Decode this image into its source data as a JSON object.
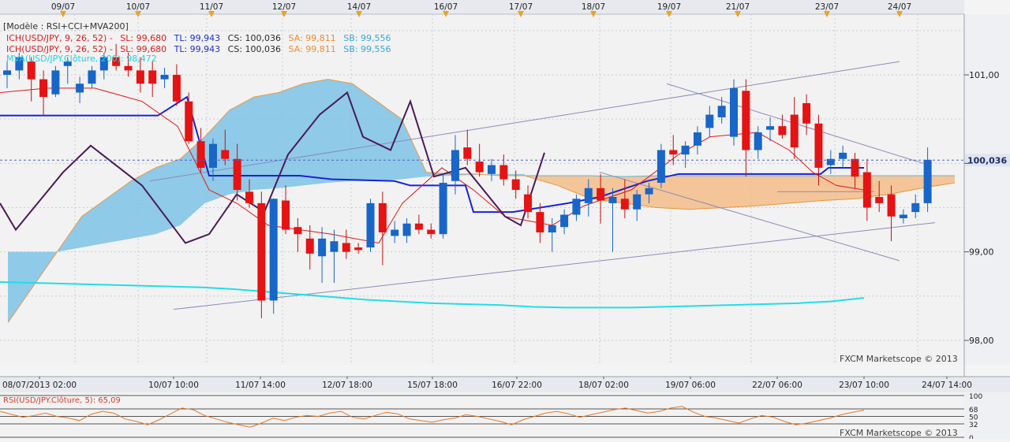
{
  "chart_data": {
    "type": "candlestick",
    "top_dates": [
      "09/07",
      "10/07",
      "11/07",
      "12/07",
      "14/07",
      "16/07",
      "17/07",
      "18/07",
      "19/07",
      "21/07",
      "23/07",
      "24/07"
    ],
    "bottom_dates": [
      "08/07/2013 02:00",
      "10/07 10:00",
      "11/07 14:00",
      "12/07 18:00",
      "15/07 18:00",
      "16/07 22:00",
      "18/07 02:00",
      "19/07 06:00",
      "22/07 06:00",
      "23/07 10:00",
      "24/07 14:00"
    ],
    "legend": {
      "model": "[Modèle : RSI+CCI+MVA200]",
      "ich_row1": {
        "name": "ICH(USD/JPY, 9, 26, 52) -",
        "sl": "SL: 99,680",
        "tl": "TL: 99,943",
        "cs": "CS: 100,036",
        "sa": "SA: 99,811",
        "sb": "SB: 99,556"
      },
      "ich_row2": {
        "name": "ICH(USD/JPY, 9, 26, 52) -",
        "sl": "SL: 99,680",
        "tl": "TL: 99,943",
        "cs": "CS: 100,036",
        "sa": "SA: 99,811",
        "sb": "SB: 99,556"
      },
      "mva": "MVA(USD/JPY.Clôture, 200): 98,472"
    },
    "y_ticks": [
      {
        "value": 98.0,
        "label": "98,00"
      },
      {
        "value": 99.0,
        "label": "99,00"
      },
      {
        "value": 100.0,
        "label": ""
      },
      {
        "value": 101.0,
        "label": "101,00"
      }
    ],
    "current_price": {
      "value": 100.036,
      "label": "100,036"
    },
    "watermark": "FXCM Marketscope © 2013",
    "rsi_panel": {
      "title": "RSI(USD/JPY.Clôture, 5): 65,09",
      "levels": [
        "100",
        "68",
        "50",
        "32",
        "0"
      ],
      "watermark": "FXCM Marketscope © 2013"
    },
    "candles": [
      [
        101.0,
        101.15,
        100.85,
        101.05
      ],
      [
        101.05,
        101.25,
        100.95,
        101.2
      ],
      [
        101.15,
        101.2,
        100.7,
        100.95
      ],
      [
        100.95,
        101.05,
        100.55,
        100.75
      ],
      [
        100.78,
        101.1,
        100.75,
        101.05
      ],
      [
        101.1,
        101.2,
        100.9,
        101.15
      ],
      [
        100.8,
        100.98,
        100.68,
        100.9
      ],
      [
        100.9,
        101.1,
        100.85,
        101.05
      ],
      [
        101.05,
        101.25,
        100.95,
        101.2
      ],
      [
        101.2,
        101.35,
        101.05,
        101.1
      ],
      [
        101.1,
        101.25,
        100.98,
        101.05
      ],
      [
        101.05,
        101.2,
        100.8,
        100.9
      ],
      [
        101.05,
        101.15,
        100.75,
        100.9
      ],
      [
        100.95,
        101.08,
        100.85,
        101.0
      ],
      [
        101.0,
        101.12,
        100.65,
        100.7
      ],
      [
        100.7,
        100.8,
        100.22,
        100.25
      ],
      [
        100.25,
        100.4,
        99.9,
        99.95
      ],
      [
        99.95,
        100.28,
        99.8,
        100.22
      ],
      [
        100.15,
        100.38,
        99.98,
        100.05
      ],
      [
        100.05,
        100.22,
        99.58,
        99.7
      ],
      [
        99.68,
        99.82,
        99.5,
        99.55
      ],
      [
        99.55,
        99.68,
        98.25,
        98.45
      ],
      [
        98.45,
        99.6,
        98.3,
        99.6
      ],
      [
        99.58,
        99.75,
        99.2,
        99.25
      ],
      [
        99.28,
        99.38,
        99.0,
        99.2
      ],
      [
        99.15,
        99.3,
        98.8,
        98.98
      ],
      [
        98.95,
        99.28,
        98.65,
        99.15
      ],
      [
        99.0,
        99.25,
        98.65,
        99.12
      ],
      [
        99.1,
        99.25,
        98.92,
        99.0
      ],
      [
        99.05,
        99.1,
        98.98,
        99.02
      ],
      [
        99.05,
        99.6,
        99.0,
        99.55
      ],
      [
        99.55,
        99.68,
        98.85,
        99.22
      ],
      [
        99.18,
        99.35,
        99.1,
        99.25
      ],
      [
        99.18,
        99.38,
        99.1,
        99.32
      ],
      [
        99.32,
        99.42,
        99.2,
        99.25
      ],
      [
        99.25,
        99.32,
        99.15,
        99.2
      ],
      [
        99.2,
        99.88,
        99.15,
        99.78
      ],
      [
        99.8,
        100.32,
        99.65,
        100.15
      ],
      [
        100.18,
        100.38,
        99.98,
        100.05
      ],
      [
        100.02,
        100.22,
        99.85,
        99.9
      ],
      [
        99.88,
        100.05,
        99.8,
        99.98
      ],
      [
        99.98,
        100.1,
        99.75,
        99.82
      ],
      [
        99.82,
        99.92,
        99.6,
        99.7
      ],
      [
        99.65,
        99.75,
        99.38,
        99.45
      ],
      [
        99.45,
        99.55,
        99.1,
        99.22
      ],
      [
        99.22,
        99.38,
        99.0,
        99.3
      ],
      [
        99.28,
        99.48,
        99.2,
        99.42
      ],
      [
        99.42,
        99.65,
        99.35,
        99.6
      ],
      [
        99.55,
        99.82,
        99.4,
        99.72
      ],
      [
        99.72,
        99.88,
        99.32,
        99.58
      ],
      [
        99.55,
        99.72,
        99.0,
        99.62
      ],
      [
        99.6,
        99.82,
        99.38,
        99.48
      ],
      [
        99.48,
        99.7,
        99.35,
        99.65
      ],
      [
        99.65,
        99.78,
        99.55,
        99.72
      ],
      [
        99.78,
        100.22,
        99.72,
        100.15
      ],
      [
        100.15,
        100.32,
        99.98,
        100.1
      ],
      [
        100.1,
        100.25,
        99.95,
        100.2
      ],
      [
        100.2,
        100.42,
        100.1,
        100.35
      ],
      [
        100.4,
        100.65,
        100.3,
        100.55
      ],
      [
        100.52,
        100.75,
        100.45,
        100.65
      ],
      [
        100.3,
        100.95,
        100.2,
        100.85
      ],
      [
        100.82,
        100.95,
        99.85,
        100.15
      ],
      [
        100.15,
        100.42,
        100.05,
        100.35
      ],
      [
        100.38,
        100.52,
        100.25,
        100.42
      ],
      [
        100.42,
        100.55,
        100.28,
        100.32
      ],
      [
        100.55,
        100.75,
        100.05,
        100.18
      ],
      [
        100.68,
        100.78,
        100.32,
        100.45
      ],
      [
        100.45,
        100.55,
        99.75,
        99.95
      ],
      [
        99.98,
        100.15,
        99.88,
        100.05
      ],
      [
        100.05,
        100.2,
        99.95,
        100.12
      ],
      [
        100.05,
        100.12,
        99.72,
        99.85
      ],
      [
        99.9,
        100.05,
        99.35,
        99.5
      ],
      [
        99.62,
        99.8,
        99.45,
        99.55
      ],
      [
        99.65,
        99.75,
        99.12,
        99.4
      ],
      [
        99.38,
        99.48,
        99.32,
        99.42
      ],
      [
        99.45,
        99.65,
        99.38,
        99.55
      ],
      [
        99.55,
        100.18,
        99.45,
        100.04
      ]
    ]
  }
}
